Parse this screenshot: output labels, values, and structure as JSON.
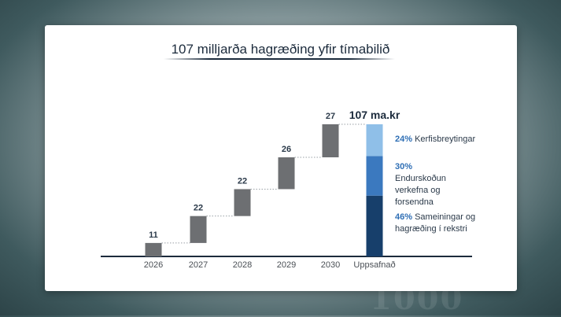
{
  "chart_data": {
    "type": "bar",
    "title": "107 milljarða hagræðing yfir tímabilið",
    "categories": [
      "2026",
      "2027",
      "2028",
      "2029",
      "2030"
    ],
    "values": [
      11,
      22,
      22,
      26,
      27
    ],
    "total": {
      "category": "Uppsafnað",
      "label": "107 ma.kr",
      "breakdown": [
        {
          "percent": "24%",
          "text": "Kerfisbreytingar",
          "share": 0.24,
          "color": "#8fbfe8"
        },
        {
          "percent": "30%",
          "text": "Endurskoðun verkefna og forsendna",
          "share": 0.3,
          "color": "#3b79bf"
        },
        {
          "percent": "46%",
          "text": "Sameiningar og hagræðing í rekstri",
          "share": 0.46,
          "color": "#173f6b"
        }
      ]
    },
    "bar_color": "#6d6f72",
    "axis_color": "#1c2b3c",
    "pct_color": "#2f6fb5"
  }
}
